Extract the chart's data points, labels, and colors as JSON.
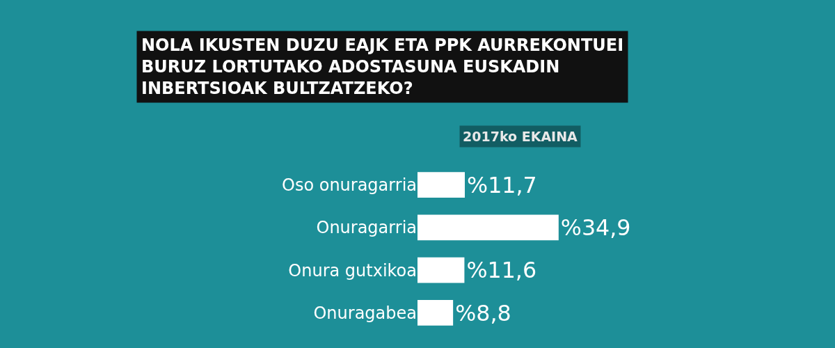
{
  "chart_data": {
    "type": "bar",
    "orientation": "horizontal",
    "title": "NOLA IKUSTEN DUZU EAJK ETA PPK AURREKONTUEI BURUZ LORTUTAKO ADOSTASUNA EUSKADIN INBERTSIOAK BULTZATZEKO?",
    "subtitle": "2017ko EKAINA",
    "categories": [
      "Oso onuragarria",
      "Onuragarria",
      "Onura gutxikoa",
      "Onuragabea"
    ],
    "values": [
      11.7,
      34.9,
      11.6,
      8.8
    ],
    "value_labels": [
      "%11,7",
      "%34,9",
      "%11,6",
      "%8,8"
    ],
    "color": "#ffffff",
    "tick_labels": "y"
  }
}
